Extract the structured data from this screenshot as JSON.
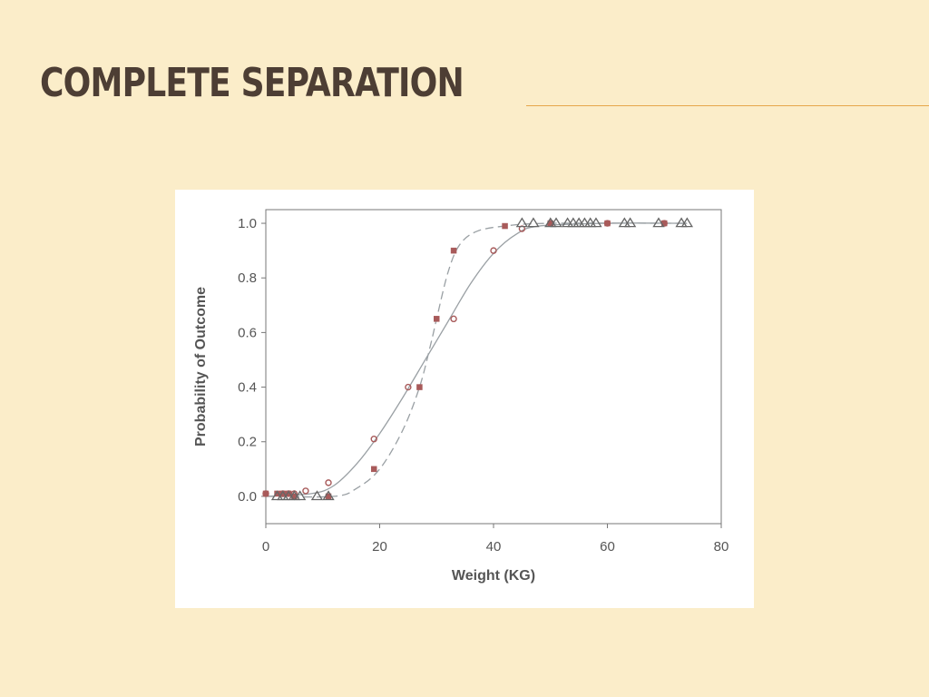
{
  "slide": {
    "title": "COMPLETE SEPARATION"
  },
  "colors": {
    "background": "#fbedc9",
    "title": "#4d3e34",
    "rule": "#e6a64a",
    "axis": "#777777",
    "curve": "#9aa0a4",
    "marker": "#a85a5a",
    "triangle": "#666666"
  },
  "chart_data": {
    "type": "scatter",
    "title": "",
    "xlabel": "Weight (KG)",
    "ylabel": "Probability of Outcome",
    "xlim": [
      0,
      80
    ],
    "ylim": [
      -0.1,
      1.05
    ],
    "x_ticks": [
      0,
      20,
      40,
      60,
      80
    ],
    "y_ticks": [
      0.0,
      0.2,
      0.4,
      0.6,
      0.8,
      1.0
    ],
    "x_tick_labels": [
      "0",
      "20",
      "40",
      "60",
      "80"
    ],
    "y_tick_labels": [
      "0.0",
      "0.2",
      "0.4",
      "0.6",
      "0.8",
      "1.0"
    ],
    "grid": false,
    "legend": "none",
    "series": [
      {
        "marker": "circle",
        "line": "solid",
        "points": [
          [
            0,
            0.01
          ],
          [
            3,
            0.01
          ],
          [
            4,
            0.01
          ],
          [
            5,
            0.01
          ],
          [
            7,
            0.02
          ],
          [
            11,
            0.05
          ],
          [
            19,
            0.21
          ],
          [
            25,
            0.4
          ],
          [
            33,
            0.65
          ],
          [
            40,
            0.9
          ],
          [
            45,
            0.98
          ],
          [
            50,
            1.0
          ],
          [
            60,
            1.0
          ],
          [
            70,
            1.0
          ]
        ],
        "curve": [
          [
            0,
            0.0
          ],
          [
            8,
            0.01
          ],
          [
            12,
            0.04
          ],
          [
            16,
            0.12
          ],
          [
            20,
            0.23
          ],
          [
            24,
            0.36
          ],
          [
            28,
            0.5
          ],
          [
            32,
            0.64
          ],
          [
            36,
            0.78
          ],
          [
            40,
            0.89
          ],
          [
            44,
            0.96
          ],
          [
            48,
            0.99
          ],
          [
            60,
            1.0
          ],
          [
            74,
            1.0
          ]
        ]
      },
      {
        "marker": "square",
        "line": "dashed",
        "points": [
          [
            0,
            0.01
          ],
          [
            2,
            0.01
          ],
          [
            3,
            0.01
          ],
          [
            4,
            0.01
          ],
          [
            5,
            0.0
          ],
          [
            11,
            0.0
          ],
          [
            19,
            0.1
          ],
          [
            27,
            0.4
          ],
          [
            30,
            0.65
          ],
          [
            33,
            0.9
          ],
          [
            42,
            0.99
          ],
          [
            50,
            1.0
          ],
          [
            60,
            1.0
          ],
          [
            70,
            1.0
          ]
        ],
        "curve": [
          [
            0,
            0.0
          ],
          [
            12,
            0.0
          ],
          [
            16,
            0.03
          ],
          [
            20,
            0.1
          ],
          [
            24,
            0.24
          ],
          [
            27,
            0.4
          ],
          [
            29,
            0.56
          ],
          [
            30,
            0.65
          ],
          [
            32,
            0.82
          ],
          [
            34,
            0.92
          ],
          [
            37,
            0.97
          ],
          [
            42,
            0.99
          ],
          [
            50,
            1.0
          ],
          [
            74,
            1.0
          ]
        ]
      },
      {
        "marker": "triangle",
        "line": "none",
        "points": [
          [
            2,
            0.0
          ],
          [
            3,
            0.0
          ],
          [
            4,
            0.0
          ],
          [
            5,
            0.0
          ],
          [
            6,
            0.0
          ],
          [
            9,
            0.0
          ],
          [
            11,
            0.0
          ],
          [
            45,
            1.0
          ],
          [
            47,
            1.0
          ],
          [
            50,
            1.0
          ],
          [
            51,
            1.0
          ],
          [
            53,
            1.0
          ],
          [
            54,
            1.0
          ],
          [
            55,
            1.0
          ],
          [
            56,
            1.0
          ],
          [
            57,
            1.0
          ],
          [
            58,
            1.0
          ],
          [
            63,
            1.0
          ],
          [
            64,
            1.0
          ],
          [
            69,
            1.0
          ],
          [
            73,
            1.0
          ],
          [
            74,
            1.0
          ]
        ]
      }
    ]
  }
}
